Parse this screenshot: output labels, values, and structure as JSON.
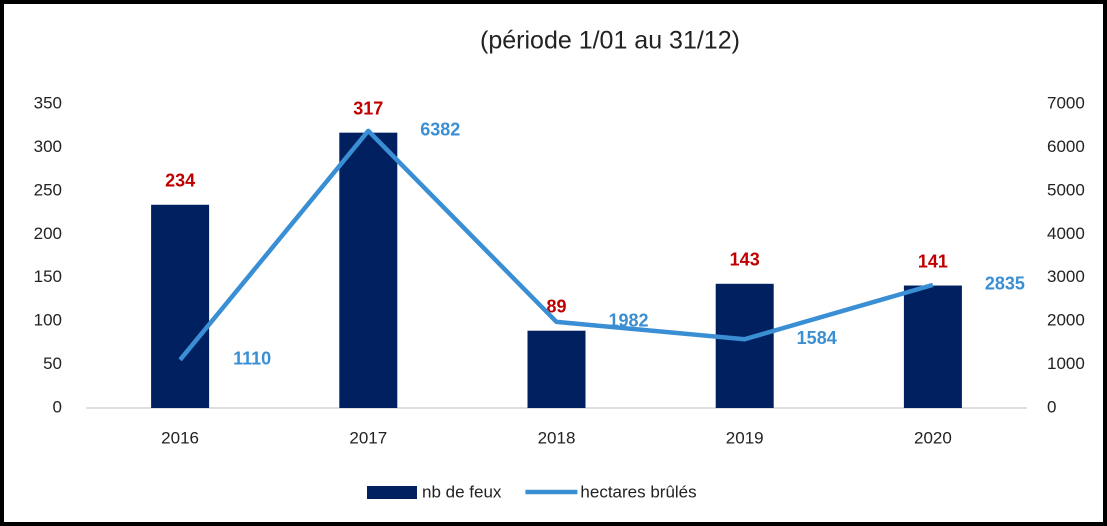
{
  "chart_data": {
    "type": "combo",
    "title": "(période 1/01 au 31/12)",
    "categories": [
      "2016",
      "2017",
      "2018",
      "2019",
      "2020"
    ],
    "series": [
      {
        "name": "nb de feux",
        "type": "bar",
        "color": "#002060",
        "label_color": "#c00000",
        "values": [
          234,
          317,
          89,
          143,
          141
        ]
      },
      {
        "name": "hectares brûlés",
        "type": "line",
        "axis": "y2",
        "color": "#3a8fd4",
        "label_color": "#3a8fd4",
        "values": [
          1110,
          6382,
          1982,
          1584,
          2835
        ]
      }
    ],
    "ylim": [
      0,
      350
    ],
    "yticks": [
      0,
      50,
      100,
      150,
      200,
      250,
      300,
      350
    ],
    "y2lim": [
      0,
      7000
    ],
    "y2ticks": [
      0,
      1000,
      2000,
      3000,
      4000,
      5000,
      6000,
      7000
    ],
    "grid": false,
    "legend": "bottom"
  }
}
